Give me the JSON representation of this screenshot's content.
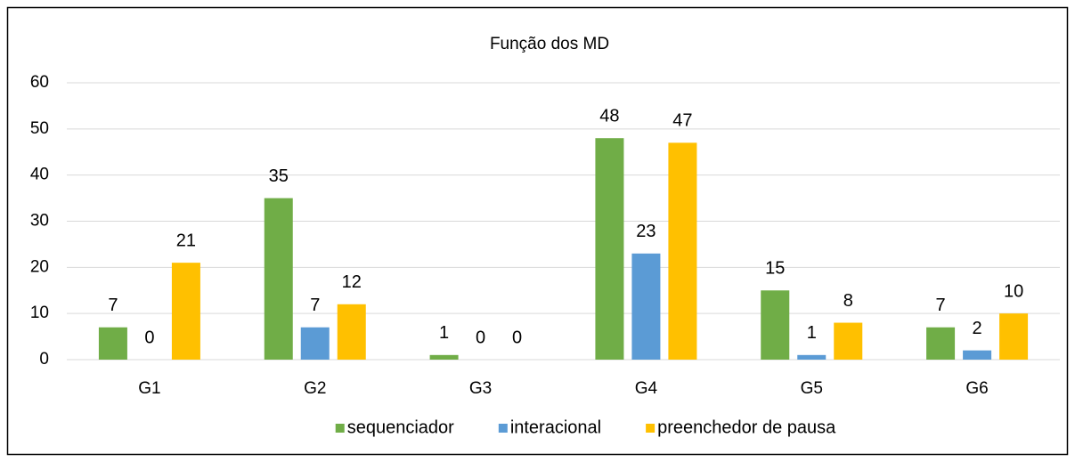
{
  "chart_data": {
    "type": "bar",
    "title": "Função dos MD",
    "categories": [
      "G1",
      "G2",
      "G3",
      "G4",
      "G5",
      "G6"
    ],
    "series": [
      {
        "name": "sequenciador",
        "color": "#70ad47",
        "values": [
          7,
          35,
          1,
          48,
          15,
          7
        ]
      },
      {
        "name": "interacional",
        "color": "#5b9bd5",
        "values": [
          0,
          7,
          0,
          23,
          1,
          2
        ]
      },
      {
        "name": "preenchedor de pausa",
        "color": "#ffc000",
        "values": [
          21,
          12,
          0,
          47,
          8,
          10
        ]
      }
    ],
    "ylim": [
      0,
      60
    ],
    "yticks": [
      0,
      10,
      20,
      30,
      40,
      50,
      60
    ],
    "grid": true,
    "legend": "bottom"
  }
}
